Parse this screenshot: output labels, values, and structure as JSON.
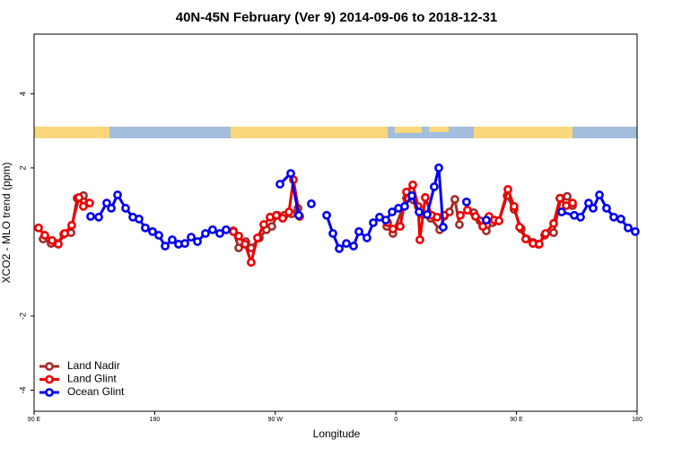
{
  "chart_data": {
    "type": "line",
    "title": "40N-45N February (Ver 9)   2014-09-06 to 2018-12-31",
    "xlabel": "Longitude",
    "ylabel": "XCO2 - MLO trend (ppm)",
    "xlim": [
      90,
      540
    ],
    "ylim": [
      -4.57,
      5.61
    ],
    "xticks": [
      {
        "value": 90,
        "label": "90 E"
      },
      180,
      {
        "value": 270,
        "label": "90 W"
      },
      {
        "value": 360,
        "label": "0"
      },
      {
        "value": 450,
        "label": "90 E"
      },
      {
        "value": 540,
        "label": "180"
      }
    ],
    "yticks": [
      -4,
      -2,
      2,
      4
    ],
    "legend": "lower left",
    "series": [
      {
        "name": "Land Nadir",
        "color": "#a52a2a",
        "x": [
          96.7,
          102.7,
          107.4,
          112.1,
          117.5,
          122.1,
          126.8,
          130.8,
          null,
          238.7,
          242.7,
          248.0,
          252.0,
          258.1,
          263.4,
          267.4,
          271.5,
          276.8,
          282.2,
          286.9,
          null,
          353.2,
          357.8,
          367.9,
          373.2,
          379.9,
          386.0,
          392.7,
          396.0,
          400.0,
          404.0,
          407.4,
          null,
          418.1,
          422.8,
          427.5,
          432.2,
          436.9,
          443.0,
          448.2,
          453.6,
          457.6,
          462.3,
          466.3,
          471.0,
          477.7,
          483.1,
          487.8,
          491.8
        ],
        "values": [
          0.08,
          -0.04,
          -0.04,
          0.21,
          0.25,
          1.18,
          1.25,
          1.05,
          null,
          0.3,
          -0.16,
          0.01,
          -0.16,
          0.11,
          0.33,
          0.42,
          0.72,
          0.72,
          0.76,
          0.91,
          null,
          0.42,
          0.23,
          1.18,
          1.13,
          0.74,
          0.64,
          0.33,
          0.69,
          0.81,
          1.15,
          0.47,
          null,
          0.79,
          0.57,
          0.3,
          0.52,
          0.57,
          1.25,
          0.88,
          0.35,
          0.08,
          -0.01,
          -0.06,
          0.18,
          0.25,
          1.18,
          1.23,
          0.98
        ]
      },
      {
        "name": "Land Glint",
        "color": "#ee0000",
        "x": [
          93.3,
          98.0,
          103.4,
          108.1,
          112.8,
          118.1,
          123.5,
          126.8,
          131.5,
          null,
          238.7,
          242.7,
          247.4,
          252.0,
          256.7,
          261.4,
          266.1,
          270.8,
          275.5,
          280.2,
          283.5,
          288.2,
          null,
          353.8,
          357.8,
          363.2,
          367.9,
          372.6,
          376.6,
          377.9,
          381.9,
          386.6,
          390.7,
          396.0,
          null,
          408.1,
          413.4,
          419.4,
          424.8,
          429.5,
          433.5,
          436.9,
          443.6,
          448.2,
          452.3,
          456.9,
          462.3,
          467.0,
          471.7,
          477.7,
          482.4,
          487.1,
          491.8
        ],
        "values": [
          0.38,
          0.18,
          0.04,
          -0.06,
          0.23,
          0.45,
          1.2,
          0.96,
          1.05,
          null,
          0.28,
          0.16,
          -0.06,
          -0.55,
          0.11,
          0.47,
          0.67,
          0.72,
          0.64,
          0.81,
          1.68,
          0.69,
          null,
          0.52,
          0.35,
          0.42,
          1.35,
          1.54,
          0.96,
          0.06,
          1.2,
          0.72,
          0.67,
          0.72,
          null,
          0.72,
          0.86,
          0.69,
          0.42,
          0.69,
          0.59,
          0.57,
          1.42,
          0.96,
          0.4,
          0.08,
          -0.04,
          -0.06,
          0.23,
          0.5,
          1.18,
          0.98,
          1.05
        ]
      },
      {
        "name": "Ocean Glint",
        "color": "#0000ee",
        "x": [
          132.2,
          138.2,
          144.2,
          147.6,
          152.3,
          158.3,
          163.7,
          168.3,
          173.0,
          178.4,
          183.1,
          187.8,
          193.1,
          197.8,
          202.5,
          207.2,
          211.9,
          217.9,
          223.2,
          228.6,
          233.3,
          null,
          273.5,
          281.5,
          287.5,
          null,
          296.9,
          null,
          308.3,
          313.0,
          317.7,
          323.0,
          328.4,
          332.4,
          338.4,
          343.1,
          347.8,
          352.5,
          357.2,
          361.9,
          366.5,
          371.9,
          377.3,
          383.3,
          388.6,
          392.0,
          395.3,
          null,
          412.7,
          null,
          427.5,
          null,
          483.7,
          493.1,
          497.8,
          503.8,
          507.2,
          511.9,
          517.2,
          522.6,
          527.9,
          533.3,
          538.6
        ],
        "values": [
          0.69,
          0.67,
          1.05,
          0.91,
          1.27,
          0.91,
          0.67,
          0.62,
          0.38,
          0.28,
          0.18,
          -0.11,
          0.06,
          -0.06,
          -0.04,
          0.13,
          0.01,
          0.23,
          0.33,
          0.23,
          0.33,
          null,
          1.56,
          1.85,
          0.72,
          null,
          1.03,
          null,
          0.72,
          0.23,
          -0.18,
          -0.04,
          -0.11,
          0.28,
          0.11,
          0.52,
          0.67,
          0.59,
          0.81,
          0.91,
          0.96,
          1.25,
          0.81,
          0.74,
          1.49,
          2.0,
          0.4,
          null,
          1.08,
          null,
          0.59,
          null,
          0.81,
          0.72,
          0.67,
          1.05,
          0.91,
          1.27,
          0.91,
          0.67,
          0.62,
          0.38,
          0.28
        ]
      }
    ]
  }
}
